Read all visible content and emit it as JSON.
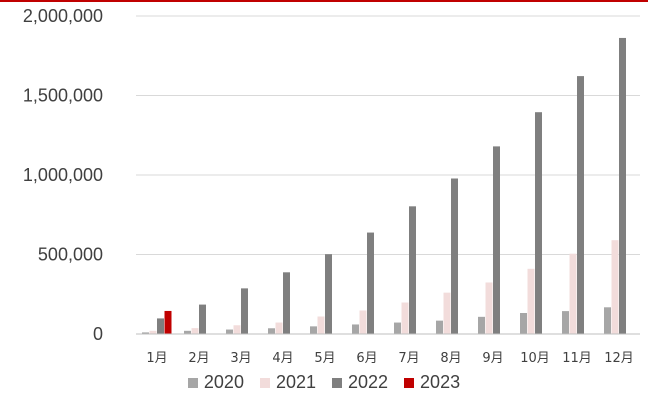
{
  "chart_data": {
    "type": "bar",
    "categories": [
      "1月",
      "2月",
      "3月",
      "4月",
      "5月",
      "6月",
      "7月",
      "8月",
      "9月",
      "10月",
      "11月",
      "12月"
    ],
    "series": [
      {
        "name": "2020",
        "color": "#a6a6a6",
        "values": [
          10000,
          20000,
          28000,
          36000,
          48000,
          60000,
          72000,
          84000,
          108000,
          132000,
          144000,
          168000
        ]
      },
      {
        "name": "2021",
        "color": "#f2dcdb",
        "values": [
          20000,
          37000,
          55000,
          72000,
          110000,
          148000,
          198000,
          260000,
          324000,
          410000,
          505000,
          590000
        ]
      },
      {
        "name": "2022",
        "color": "#7f7f7f",
        "values": [
          98000,
          185000,
          287000,
          388000,
          502000,
          638000,
          803000,
          978000,
          1180000,
          1395000,
          1622000,
          1862000
        ]
      },
      {
        "name": "2023",
        "color": "#c00000",
        "values": [
          145000,
          null,
          null,
          null,
          null,
          null,
          null,
          null,
          null,
          null,
          null,
          null
        ]
      }
    ],
    "ylim": [
      0,
      2000000
    ],
    "yticks": [
      "0",
      "500,000",
      "1,000,000",
      "1,500,000",
      "2,000,000"
    ],
    "ytick_values": [
      0,
      500000,
      1000000,
      1500000,
      2000000
    ],
    "grid": true,
    "legend_position": "bottom"
  }
}
